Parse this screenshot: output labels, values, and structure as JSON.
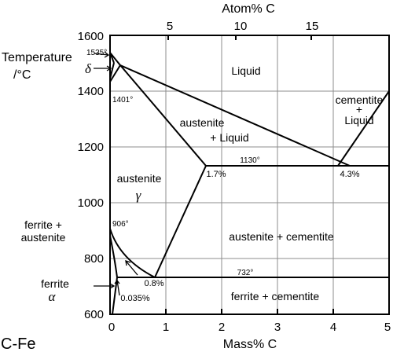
{
  "diagram": {
    "title": "C-Fe",
    "ylabel_line1": "Temperature",
    "ylabel_line2": "/°C",
    "xlabel_bottom": "Mass% C",
    "xlabel_top": "Atom% C",
    "y_ticks": [
      "600",
      "800",
      "1000",
      "1200",
      "1400",
      "1600"
    ],
    "x_ticks_bottom": [
      "0",
      "1",
      "2",
      "3",
      "4",
      "5"
    ],
    "x_ticks_top": [
      "5",
      "10",
      "15"
    ],
    "regions": {
      "liquid": "Liquid",
      "austenite_liquid_1": "austenite",
      "austenite_liquid_2": "+ Liquid",
      "cementite_liquid_1": "cementite",
      "cementite_liquid_2": "+",
      "cementite_liquid_3": "Liquid",
      "austenite": "austenite",
      "gamma": "γ",
      "austenite_cementite": "austenite + cementite",
      "ferrite_cementite": "ferrite + cementite",
      "ferrite_austenite_1": "ferrite +",
      "ferrite_austenite_2": "austenite",
      "ferrite": "ferrite",
      "alpha": "α",
      "delta": "δ"
    },
    "annotations": {
      "t1535": "1535°",
      "t1401": "1401°",
      "t1130": "1130°",
      "t906": "906°",
      "t732": "732°",
      "c17": "1.7%",
      "c43": "4.3%",
      "c08": "0.8%",
      "c0035": "0.035%"
    }
  }
}
